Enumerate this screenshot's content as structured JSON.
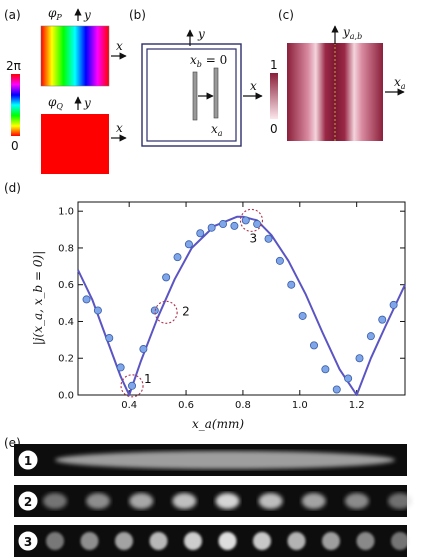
{
  "panels": {
    "a": {
      "label": "(a)",
      "phiP": "φ",
      "phiP_sub": "P",
      "phiQ": "φ",
      "phiQ_sub": "Q",
      "y_label": "y",
      "x_label": "x",
      "colorbar_top": "2π",
      "colorbar_bottom": "0"
    },
    "b": {
      "label": "(b)",
      "y_label": "y",
      "x_label": "x",
      "xb_label": "x",
      "xb_sub": "b",
      "xb_eq": " = 0",
      "xa_label": "x",
      "xa_sub": "a"
    },
    "c": {
      "label": "(c)",
      "y_label": "y",
      "y_sub": "a,b",
      "x_label": "x",
      "x_sub": "a",
      "colorbar_top": "1",
      "colorbar_bottom": "0"
    },
    "d": {
      "label": "(d)",
      "ylabel": "|j(x_a, x_b = 0)|",
      "xlabel": "x_a(mm)",
      "markers": [
        "1",
        "2",
        "3"
      ]
    },
    "e": {
      "label": "(e)",
      "markers": [
        "1",
        "2",
        "3"
      ]
    }
  },
  "chart_data": {
    "type": "scatter",
    "title": "",
    "xlabel": "x_a(mm)",
    "ylabel": "|j(x_a, x_b = 0)|",
    "xlim": [
      0.22,
      1.37
    ],
    "ylim": [
      0,
      1.05
    ],
    "xticks": [
      0.4,
      0.6,
      0.8,
      1.0,
      1.2
    ],
    "yticks": [
      0.0,
      0.2,
      0.4,
      0.6,
      0.8,
      1.0
    ],
    "series": [
      {
        "values_x": [
          0.25,
          0.29,
          0.33,
          0.37,
          0.41,
          0.45,
          0.49,
          0.53,
          0.57,
          0.61,
          0.65,
          0.69,
          0.73,
          0.77,
          0.81,
          0.85,
          0.89,
          0.93,
          0.97,
          1.01,
          1.05,
          1.09,
          1.13,
          1.17,
          1.21,
          1.25,
          1.29,
          1.33
        ],
        "values_y": [
          0.52,
          0.46,
          0.31,
          0.15,
          0.05,
          0.25,
          0.46,
          0.64,
          0.75,
          0.82,
          0.88,
          0.91,
          0.93,
          0.92,
          0.95,
          0.93,
          0.85,
          0.73,
          0.6,
          0.43,
          0.27,
          0.14,
          0.03,
          0.09,
          0.2,
          0.32,
          0.41,
          0.49
        ]
      },
      {
        "type": "line",
        "values_x": [
          0.22,
          0.27,
          0.32,
          0.37,
          0.4,
          0.44,
          0.5,
          0.56,
          0.62,
          0.7,
          0.78,
          0.8,
          0.85,
          0.9,
          0.96,
          1.02,
          1.08,
          1.14,
          1.2,
          1.25,
          1.3,
          1.37
        ],
        "values_y": [
          0.68,
          0.52,
          0.31,
          0.1,
          0.0,
          0.18,
          0.42,
          0.63,
          0.8,
          0.92,
          0.97,
          0.97,
          0.95,
          0.87,
          0.73,
          0.55,
          0.34,
          0.14,
          0.0,
          0.2,
          0.37,
          0.6
        ]
      }
    ],
    "highlighted_points": [
      {
        "label": "1",
        "x": 0.41,
        "y": 0.05
      },
      {
        "label": "2",
        "x": 0.53,
        "y": 0.45
      },
      {
        "label": "3",
        "x": 0.83,
        "y": 0.95
      }
    ]
  }
}
